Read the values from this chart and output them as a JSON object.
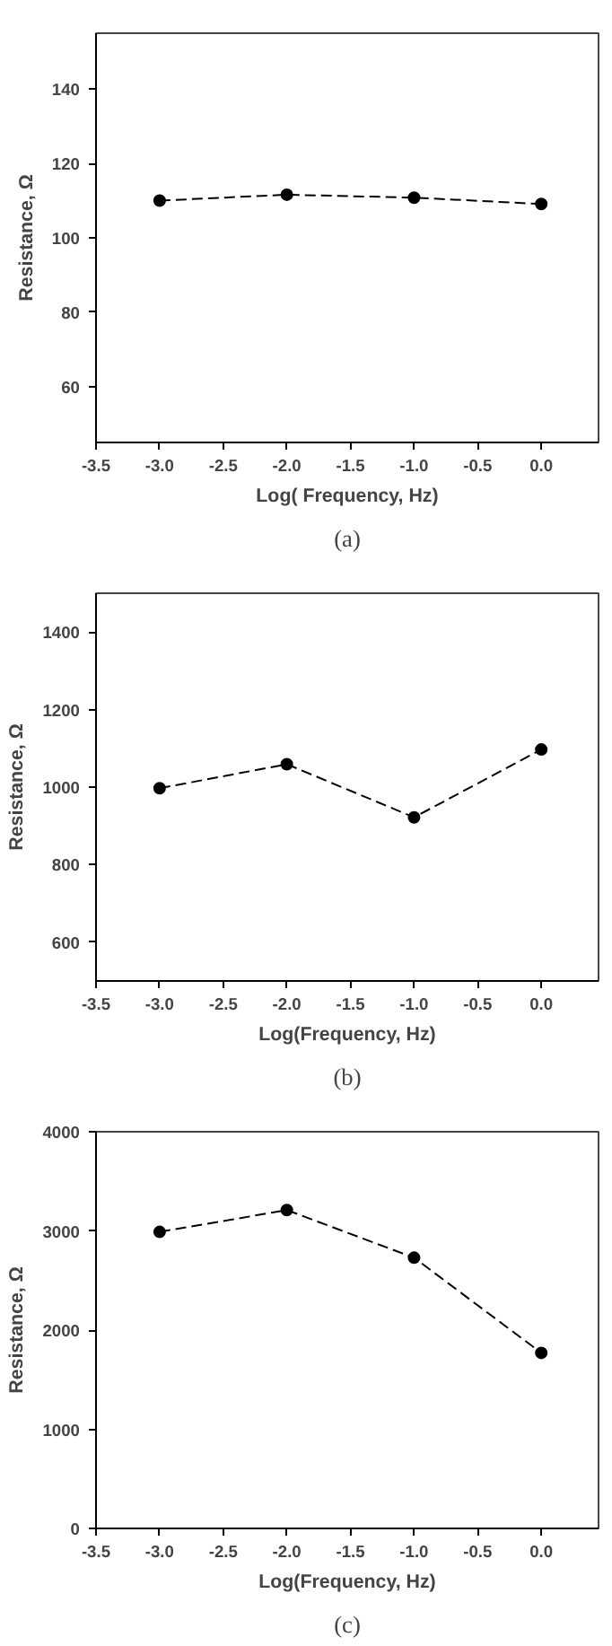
{
  "chart_data": [
    {
      "type": "line",
      "xlabel": "Log( Frequency, Hz)",
      "ylabel": "Resistance, Ω",
      "annotations": [
        "(a)"
      ],
      "x": [
        -3.0,
        -2.0,
        -1.0,
        0.0
      ],
      "series": [
        {
          "color": "#000000",
          "values": [
            110,
            111.6,
            110.8,
            109.1
          ]
        }
      ],
      "xlim": [
        -3.5,
        0.45
      ],
      "xticks": [
        {
          "value": -3.5,
          "label": "-3.5"
        },
        {
          "value": -3.0,
          "label": "-3.0"
        },
        {
          "value": -2.5,
          "label": "-2.5"
        },
        {
          "value": -2.0,
          "label": "-2.0"
        },
        {
          "value": -1.5,
          "label": "-1.5"
        },
        {
          "value": -1.0,
          "label": "-1.0"
        },
        {
          "value": -0.5,
          "label": "-0.5"
        },
        {
          "value": 0.0,
          "label": "0.0"
        }
      ],
      "ylim": [
        45,
        155
      ],
      "yticks": [
        60,
        80,
        100,
        120,
        140
      ],
      "grid": false,
      "marker": "circle",
      "line_style": "dashed"
    },
    {
      "type": "line",
      "xlabel": "Log(Frequency, Hz)",
      "ylabel": "Resistance, Ω",
      "annotations": [
        "(b)"
      ],
      "x": [
        -3.0,
        -2.0,
        -1.0,
        0.0
      ],
      "series": [
        {
          "color": "#000000",
          "values": [
            997,
            1059,
            922,
            1097
          ]
        }
      ],
      "xlim": [
        -3.5,
        0.45
      ],
      "xticks": [
        {
          "value": -3.5,
          "label": "-3.5"
        },
        {
          "value": -3.0,
          "label": "-3.0"
        },
        {
          "value": -2.5,
          "label": "-2.5"
        },
        {
          "value": -2.0,
          "label": "-2.0"
        },
        {
          "value": -1.5,
          "label": "-1.5"
        },
        {
          "value": -1.0,
          "label": "-1.0"
        },
        {
          "value": -0.5,
          "label": "-0.5"
        },
        {
          "value": 0.0,
          "label": "0.0"
        }
      ],
      "ylim": [
        500,
        1500
      ],
      "yticks": [
        600,
        800,
        1000,
        1200,
        1400
      ],
      "grid": false,
      "marker": "circle",
      "line_style": "dashed"
    },
    {
      "type": "line",
      "xlabel": "Log(Frequency, Hz)",
      "ylabel": "Resistance, Ω",
      "annotations": [
        "(c)"
      ],
      "x": [
        -3.0,
        -2.0,
        -1.0,
        0.0
      ],
      "series": [
        {
          "color": "#000000",
          "values": [
            2990,
            3210,
            2730,
            1770
          ]
        }
      ],
      "xlim": [
        -3.5,
        0.45
      ],
      "xticks": [
        {
          "value": -3.5,
          "label": "-3.5"
        },
        {
          "value": -3.0,
          "label": "-3.0"
        },
        {
          "value": -2.5,
          "label": "-2.5"
        },
        {
          "value": -2.0,
          "label": "-2.0"
        },
        {
          "value": -1.5,
          "label": "-1.5"
        },
        {
          "value": -1.0,
          "label": "-1.0"
        },
        {
          "value": -0.5,
          "label": "-0.5"
        },
        {
          "value": 0.0,
          "label": "0.0"
        }
      ],
      "ylim": [
        0,
        4000
      ],
      "yticks": [
        0,
        1000,
        2000,
        3000,
        4000
      ],
      "grid": false,
      "marker": "circle",
      "line_style": "dashed"
    }
  ]
}
